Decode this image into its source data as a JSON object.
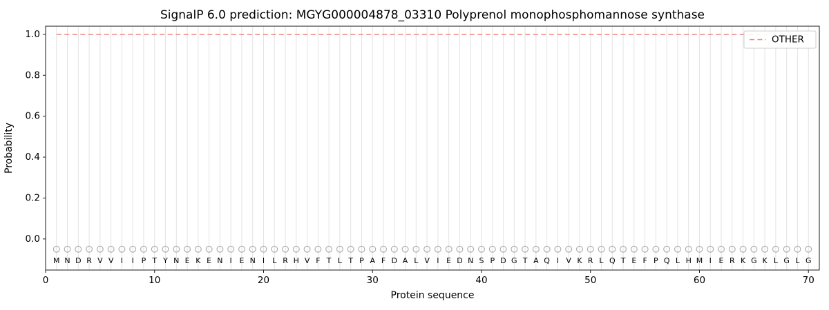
{
  "figure": {
    "title": "SignalP 6.0 prediction: MGYG000004878_03310 Polyprenol monophosphomannose synthase"
  },
  "chart_data": {
    "type": "line",
    "title": "SignalP 6.0 prediction: MGYG000004878_03310 Polyprenol monophosphomannose synthase",
    "xlabel": "Protein sequence",
    "ylabel": "Probability",
    "xlim": [
      0,
      71
    ],
    "ylim": [
      -0.152,
      1.04
    ],
    "xticks": [
      0,
      10,
      20,
      30,
      40,
      50,
      60,
      70
    ],
    "yticks": [
      0.0,
      0.2,
      0.4,
      0.6,
      0.8,
      1.0
    ],
    "grid": true,
    "sequence": "MNDRVVIIPTYNEKENIENILRHVFTLTPAFDALVIEDNSPDGTAQIVKRLQTEFPQLHMIERKGKLGLG",
    "sequence_positions": [
      1,
      70
    ],
    "series": [
      {
        "name": "OTHER",
        "style": "dashed",
        "color": "#f08080",
        "constant_value": 1.0,
        "x_range": [
          1,
          70
        ]
      }
    ],
    "legend": {
      "position": "upper right",
      "entries": [
        "OTHER"
      ]
    },
    "markers": {
      "shape": "circle",
      "y": -0.05,
      "color": "#ababab"
    },
    "letters_y": -0.107,
    "colors": {
      "grid": "#e3e3e3",
      "spine": "#1a1a1a",
      "letters": "#1a1a1a",
      "legend_border": "#cccccc"
    }
  }
}
